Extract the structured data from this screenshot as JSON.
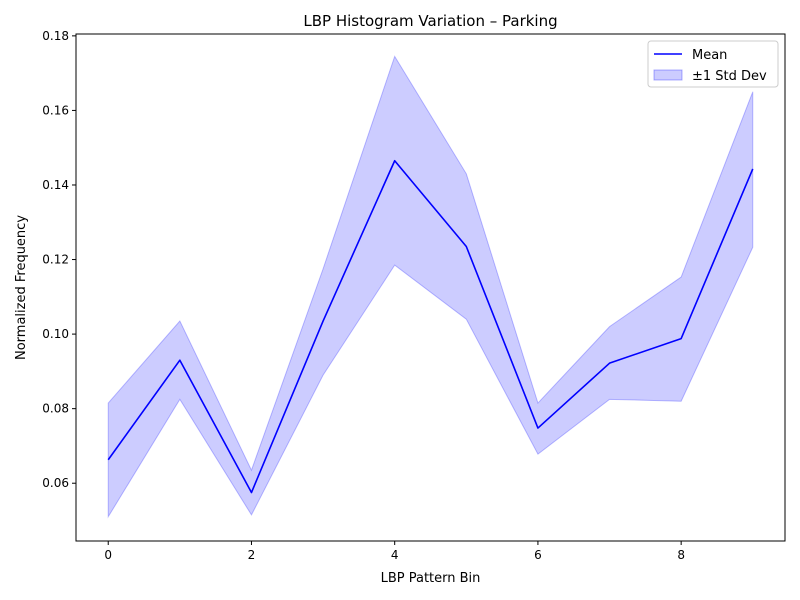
{
  "chart_data": {
    "type": "line",
    "title": "LBP Histogram Variation – Parking",
    "xlabel": "LBP Pattern Bin",
    "ylabel": "Normalized Frequency",
    "x": [
      0,
      1,
      2,
      3,
      4,
      5,
      6,
      7,
      8,
      9
    ],
    "xlim": [
      -0.45,
      9.45
    ],
    "ylim": [
      0.0445,
      0.1805
    ],
    "xticks": [
      0,
      2,
      4,
      6,
      8
    ],
    "xtick_labels": [
      "0",
      "2",
      "4",
      "6",
      "8"
    ],
    "yticks": [
      0.06,
      0.08,
      0.1,
      0.12,
      0.14,
      0.16,
      0.18
    ],
    "ytick_labels": [
      "0.06",
      "0.08",
      "0.10",
      "0.12",
      "0.14",
      "0.16",
      "0.18"
    ],
    "series": [
      {
        "name": "Mean",
        "kind": "line",
        "color": "#0000ff",
        "values": [
          0.0663,
          0.093,
          0.0575,
          0.1035,
          0.1465,
          0.1235,
          0.0748,
          0.0922,
          0.0988,
          0.1443
        ]
      },
      {
        "name": "±1 Std Dev",
        "kind": "band",
        "color": "#0000ff",
        "fill_opacity": 0.2,
        "lower": [
          0.051,
          0.0825,
          0.0515,
          0.089,
          0.1185,
          0.104,
          0.0678,
          0.0825,
          0.082,
          0.1233
        ],
        "upper": [
          0.0815,
          0.1035,
          0.0635,
          0.1175,
          0.1745,
          0.143,
          0.0815,
          0.102,
          0.1153,
          0.165
        ]
      }
    ],
    "legend": {
      "position": "top-right"
    },
    "grid": false
  }
}
